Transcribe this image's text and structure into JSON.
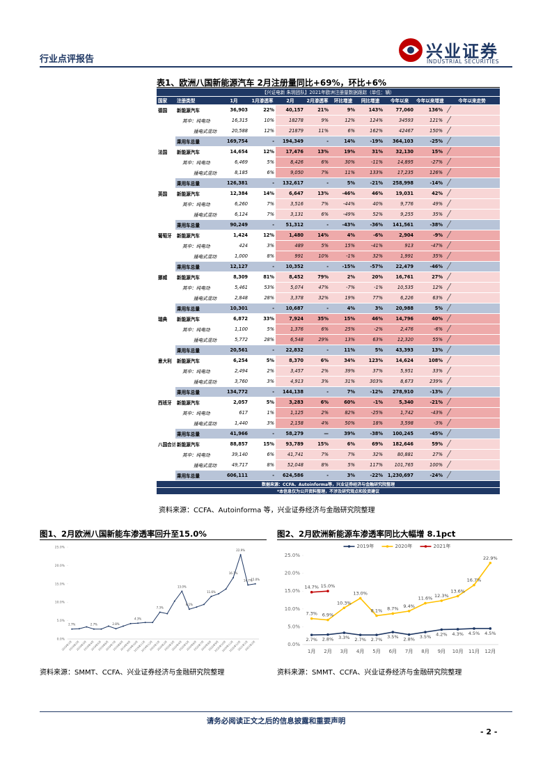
{
  "header": {
    "report_type": "行业点评报告",
    "brand": "兴业证券",
    "brand_en": "INDUSTRIAL SECURITIES"
  },
  "table": {
    "title": "表1、欧洲八国新能源汽车 2月注册量同比+69%，环比+6%",
    "banner": "【兴证电新 朱玥团队】2021年欧洲注册量数据跟踪（单位：辆）",
    "columns": [
      "国家",
      "注册类型",
      "1月",
      "1月渗透率",
      "2月",
      "2月渗透率",
      "环比增速",
      "同比增速",
      "今年以来",
      "今年以来增速",
      "今年以来走势"
    ],
    "countries": [
      {
        "name": "德国",
        "rows": [
          [
            "新能源汽车",
            "36,903",
            "22%",
            "40,157",
            "21%",
            "9%",
            "143%",
            "77,060",
            "136%"
          ],
          [
            "其中：纯电动",
            "16,315",
            "10%",
            "18278",
            "9%",
            "12%",
            "124%",
            "34593",
            "121%"
          ],
          [
            "插电式混动",
            "20,588",
            "12%",
            "21879",
            "11%",
            "6%",
            "162%",
            "42467",
            "150%"
          ],
          [
            "乘用车总量",
            "169,754",
            "-",
            "194,349",
            "-",
            "14%",
            "-19%",
            "364,103",
            "-25%"
          ]
        ]
      },
      {
        "name": "法国",
        "rows": [
          [
            "新能源汽车",
            "14,654",
            "12%",
            "17,476",
            "13%",
            "19%",
            "31%",
            "32,130",
            "15%"
          ],
          [
            "其中：纯电动",
            "6,469",
            "5%",
            "8,426",
            "6%",
            "30%",
            "-11%",
            "14,895",
            "-27%"
          ],
          [
            "插电式混动",
            "8,185",
            "6%",
            "9,050",
            "7%",
            "11%",
            "133%",
            "17,235",
            "126%"
          ],
          [
            "乘用车总量",
            "126,381",
            "-",
            "132,617",
            "-",
            "5%",
            "-21%",
            "258,998",
            "-14%"
          ]
        ]
      },
      {
        "name": "英国",
        "rows": [
          [
            "新能源汽车",
            "12,384",
            "14%",
            "6,647",
            "13%",
            "-46%",
            "46%",
            "19,031",
            "42%"
          ],
          [
            "其中：纯电动",
            "6,260",
            "7%",
            "3,516",
            "7%",
            "-44%",
            "40%",
            "9,776",
            "49%"
          ],
          [
            "插电式混动",
            "6,124",
            "7%",
            "3,131",
            "6%",
            "-49%",
            "52%",
            "9,255",
            "35%"
          ],
          [
            "乘用车总量",
            "90,249",
            "-",
            "51,312",
            "-",
            "-43%",
            "-36%",
            "141,561",
            "-38%"
          ]
        ]
      },
      {
        "name": "葡萄牙",
        "rows": [
          [
            "新能源汽车",
            "1,424",
            "12%",
            "1,480",
            "14%",
            "4%",
            "-6%",
            "2,904",
            "-9%"
          ],
          [
            "其中：纯电动",
            "424",
            "3%",
            "489",
            "5%",
            "15%",
            "-41%",
            "913",
            "-47%"
          ],
          [
            "插电式混动",
            "1,000",
            "8%",
            "991",
            "10%",
            "-1%",
            "32%",
            "1,991",
            "35%"
          ],
          [
            "乘用车总量",
            "12,127",
            "-",
            "10,352",
            "-",
            "-15%",
            "-57%",
            "22,479",
            "-46%"
          ]
        ]
      },
      {
        "name": "挪威",
        "rows": [
          [
            "新能源汽车",
            "8,309",
            "81%",
            "8,452",
            "79%",
            "2%",
            "20%",
            "16,761",
            "27%"
          ],
          [
            "其中：纯电动",
            "5,461",
            "53%",
            "5,074",
            "47%",
            "-7%",
            "-1%",
            "10,535",
            "12%"
          ],
          [
            "插电式混动",
            "2,848",
            "28%",
            "3,378",
            "32%",
            "19%",
            "77%",
            "6,226",
            "63%"
          ],
          [
            "乘用车总量",
            "10,301",
            "-",
            "10,687",
            "-",
            "4%",
            "3%",
            "20,988",
            "5%"
          ]
        ]
      },
      {
        "name": "瑞典",
        "rows": [
          [
            "新能源汽车",
            "6,872",
            "33%",
            "7,924",
            "35%",
            "15%",
            "46%",
            "14,796",
            "40%"
          ],
          [
            "其中：纯电动",
            "1,100",
            "5%",
            "1,376",
            "6%",
            "25%",
            "-2%",
            "2,476",
            "-6%"
          ],
          [
            "插电式混动",
            "5,772",
            "28%",
            "6,548",
            "29%",
            "13%",
            "63%",
            "12,320",
            "55%"
          ],
          [
            "乘用车总量",
            "20,561",
            "-",
            "22,832",
            "-",
            "11%",
            "5%",
            "43,393",
            "13%"
          ]
        ]
      },
      {
        "name": "意大利",
        "rows": [
          [
            "新能源汽车",
            "6,254",
            "5%",
            "8,370",
            "6%",
            "34%",
            "123%",
            "14,624",
            "108%"
          ],
          [
            "其中：纯电动",
            "2,494",
            "2%",
            "3,457",
            "2%",
            "39%",
            "37%",
            "5,951",
            "33%"
          ],
          [
            "插电式混动",
            "3,760",
            "3%",
            "4,913",
            "3%",
            "31%",
            "303%",
            "8,673",
            "239%"
          ],
          [
            "乘用车总量",
            "134,772",
            "-",
            "144,138",
            "-",
            "7%",
            "-12%",
            "278,910",
            "-13%"
          ]
        ]
      },
      {
        "name": "西班牙",
        "rows": [
          [
            "新能源汽车",
            "2,057",
            "5%",
            "3,283",
            "6%",
            "60%",
            "-1%",
            "5,340",
            "-21%"
          ],
          [
            "其中：纯电动",
            "617",
            "1%",
            "1,125",
            "2%",
            "82%",
            "-25%",
            "1,742",
            "-43%"
          ],
          [
            "插电式混动",
            "1,440",
            "3%",
            "2,158",
            "4%",
            "50%",
            "18%",
            "3,598",
            "-3%"
          ],
          [
            "乘用车总量",
            "41,966",
            "-",
            "58,279",
            "—",
            "39%",
            "-38%",
            "100,245",
            "-45%"
          ]
        ]
      },
      {
        "name": "八国合计",
        "rows": [
          [
            "新能源汽车",
            "88,857",
            "15%",
            "93,789",
            "15%",
            "6%",
            "69%",
            "182,646",
            "59%"
          ],
          [
            "其中：纯电动",
            "39,140",
            "6%",
            "41,741",
            "7%",
            "7%",
            "32%",
            "80,881",
            "27%"
          ],
          [
            "插电式混动",
            "49,717",
            "8%",
            "52,048",
            "8%",
            "5%",
            "117%",
            "101,765",
            "100%"
          ],
          [
            "乘用车总量",
            "606,111",
            "-",
            "624,586",
            "-",
            "3%",
            "-22%",
            "1,230,697",
            "-24%"
          ]
        ]
      }
    ],
    "notes": [
      "数据来源：CCFA、Autoinforma等，兴业证券经济与金融研究院整理",
      "*本信息仅为公开资料整理，不涉及研究观点和投资建议"
    ],
    "source": "资料来源：CCFA、Autoinforma 等，兴业证券经济与金融研究院整理"
  },
  "figures": [
    {
      "title": "图1、2月欧洲八国新能车渗透率回升至15.0%",
      "source": "资料来源：SMMT、CCFA、兴业证券经济与金融研究院整理"
    },
    {
      "title": "图2、2月欧洲新能源车渗透率同比大幅增 8.1pct",
      "source": "资料来源：SMMT、CCFA、兴业证券经济与金融研究院整理"
    }
  ],
  "chart_data": [
    {
      "type": "line",
      "color": "#1f3864",
      "grid": false,
      "categories": [
        "2019年1月",
        "2019年2月",
        "2019年3月",
        "2019年4月",
        "2019年5月",
        "2019年6月",
        "2019年7月",
        "2019年8月",
        "2019年9月",
        "2019年10月",
        "2019年11月",
        "2019年12月",
        "2020年1月",
        "2020年2月",
        "2020年3月",
        "2020年4月",
        "2020年5月",
        "2020年6月",
        "2020年7月",
        "2020年8月",
        "2020年9月",
        "2020年10月",
        "2020年11月",
        "2020年12月",
        "2021年1月",
        "2021年2月"
      ],
      "values": [
        2.7,
        2.8,
        3.3,
        2.7,
        2.7,
        3.5,
        2.8,
        3.5,
        4.2,
        4.3,
        4.5,
        4.5,
        7.3,
        6.9,
        10.3,
        13.0,
        8.1,
        8.7,
        9.4,
        11.6,
        12.3,
        13.6,
        16.7,
        22.9,
        14.7,
        15.0
      ],
      "value_labels": [
        "2.7%",
        null,
        null,
        "2.7%",
        null,
        null,
        "2.8%",
        null,
        null,
        "4.3%",
        null,
        null,
        "7.3%",
        null,
        null,
        "13.0%",
        "8.1%",
        null,
        null,
        "11.6%",
        null,
        null,
        "16.7%",
        "22.9%",
        "14.7%",
        "15.0%"
      ],
      "ylim": [
        0,
        25
      ],
      "yticks": [
        {
          "value": 0,
          "label": "0.0%"
        },
        {
          "value": 5,
          "label": "5.0%"
        },
        {
          "value": 10,
          "label": "10.0%"
        },
        {
          "value": 15,
          "label": "15.0%"
        },
        {
          "value": 20,
          "label": "20.0%"
        },
        {
          "value": 25,
          "label": "25.0%"
        }
      ]
    },
    {
      "type": "line",
      "grid": false,
      "legend": "top",
      "categories": [
        "1月",
        "2月",
        "3月",
        "4月",
        "5月",
        "6月",
        "7月",
        "8月",
        "9月",
        "10月",
        "11月",
        "12月"
      ],
      "series": [
        {
          "name": "2019年",
          "color": "#1f3864",
          "values": [
            2.7,
            2.8,
            3.3,
            2.7,
            2.7,
            3.5,
            2.8,
            3.5,
            4.2,
            4.3,
            4.5,
            4.5
          ],
          "value_labels": [
            "2.7%",
            "2.8%",
            "3.3%",
            "2.7%",
            "2.7%",
            "3.5%",
            "2.8%",
            "3.5%",
            "4.2%",
            "4.3%",
            "4.5%",
            "4.5%"
          ]
        },
        {
          "name": "2020年",
          "color": "#ffc000",
          "values": [
            7.3,
            6.9,
            10.3,
            13.0,
            8.1,
            8.7,
            9.4,
            11.6,
            12.3,
            13.6,
            16.7,
            22.9
          ],
          "value_labels": [
            "7.3%",
            "6.9%",
            "10.3%",
            "13.0%",
            "8.1%",
            "8.7%",
            "9.4%",
            "11.6%",
            "12.3%",
            "13.6%",
            "16.7%",
            "22.9%"
          ]
        },
        {
          "name": "2021年",
          "color": "#c00000",
          "values": [
            14.7,
            15.0,
            null,
            null,
            null,
            null,
            null,
            null,
            null,
            null,
            null,
            null
          ],
          "value_labels": [
            "14.7%",
            "15.0%",
            null,
            null,
            null,
            null,
            null,
            null,
            null,
            null,
            null,
            null
          ]
        }
      ],
      "ylim": [
        0,
        25
      ],
      "yticks": [
        {
          "value": 0,
          "label": "0.0%"
        },
        {
          "value": 5,
          "label": "5.0%"
        },
        {
          "value": 10,
          "label": "10.0%"
        },
        {
          "value": 15,
          "label": "15.0%"
        },
        {
          "value": 20,
          "label": "20.0%"
        },
        {
          "value": 25,
          "label": "25.0%"
        }
      ]
    }
  ],
  "footer": {
    "disclaimer": "请务必阅读正文之后的信息披露和重要声明",
    "page": "- 2 -"
  }
}
